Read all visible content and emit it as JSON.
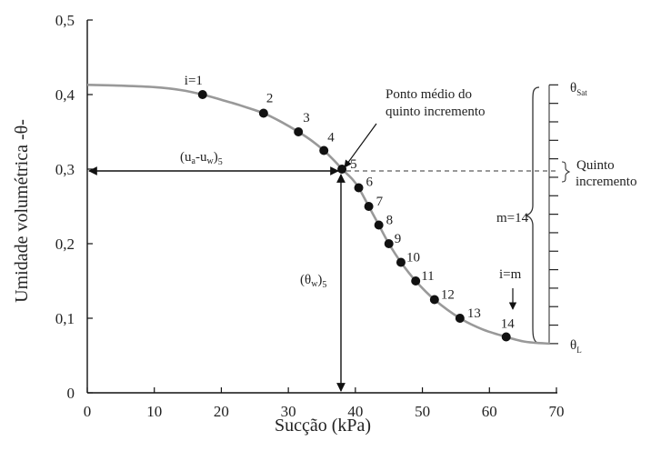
{
  "chart_data": {
    "type": "line",
    "xlabel": "Sucção (kPa)",
    "ylabel": "Umidade volumétrica -θ-",
    "xlim": [
      0,
      70
    ],
    "ylim": [
      0,
      0.5
    ],
    "x_ticks": [
      0,
      10,
      20,
      30,
      40,
      50,
      60,
      70
    ],
    "x_tick_labels": [
      "0",
      "10",
      "20",
      "30",
      "40",
      "50",
      "60",
      "70"
    ],
    "y_ticks": [
      0,
      0.1,
      0.2,
      0.3,
      0.4,
      0.5
    ],
    "y_tick_labels": [
      "0",
      "0,1",
      "0,2",
      "0,3",
      "0,4",
      "0,5"
    ],
    "grid": false,
    "curve": {
      "color": "#999999",
      "x": [
        0,
        5,
        10,
        14,
        17.2,
        20,
        23,
        26.3,
        29,
        31.5,
        33.5,
        35.3,
        37,
        38,
        39.5,
        40.5,
        42,
        43.5,
        45,
        46.8,
        49,
        51.8,
        55.6,
        59,
        62.5,
        65,
        67,
        69
      ],
      "y": [
        0.413,
        0.412,
        0.41,
        0.406,
        0.4,
        0.393,
        0.385,
        0.375,
        0.363,
        0.35,
        0.338,
        0.325,
        0.31,
        0.3,
        0.287,
        0.275,
        0.25,
        0.225,
        0.2,
        0.175,
        0.15,
        0.125,
        0.1,
        0.085,
        0.075,
        0.069,
        0.067,
        0.066
      ]
    },
    "points": [
      {
        "label": "i=1",
        "x": 17.2,
        "y": 0.4
      },
      {
        "label": "2",
        "x": 26.3,
        "y": 0.375
      },
      {
        "label": "3",
        "x": 31.5,
        "y": 0.35
      },
      {
        "label": "4",
        "x": 35.3,
        "y": 0.325
      },
      {
        "label": "5",
        "x": 38,
        "y": 0.3
      },
      {
        "label": "6",
        "x": 40.5,
        "y": 0.275
      },
      {
        "label": "7",
        "x": 42,
        "y": 0.25
      },
      {
        "label": "8",
        "x": 43.5,
        "y": 0.225
      },
      {
        "label": "9",
        "x": 45,
        "y": 0.2
      },
      {
        "label": "10",
        "x": 46.8,
        "y": 0.175
      },
      {
        "label": "11",
        "x": 49,
        "y": 0.15
      },
      {
        "label": "12",
        "x": 51.8,
        "y": 0.125
      },
      {
        "label": "13",
        "x": 55.6,
        "y": 0.1
      },
      {
        "label": "14",
        "x": 62.5,
        "y": 0.075
      }
    ],
    "increment_scale": {
      "x": 70,
      "y_top": 0.413,
      "y_bottom": 0.066,
      "divisions": 14
    },
    "annotations": {
      "ponto_medio_line1": "Ponto médio do",
      "ponto_medio_line2": "quinto incremento",
      "theta_sat": "θ",
      "theta_sat_sub": "Sat",
      "theta_l": "θ",
      "theta_l_sub": "L",
      "quinto_line1": "Quinto",
      "quinto_line2": "incremento",
      "m_label": "m=14",
      "i_m_label": "i=m",
      "suction_label_main": "(u",
      "suction_label_sub_a": "a",
      "suction_label_mid": "-u",
      "suction_label_sub_w": "w",
      "suction_label_end": ")",
      "suction_label_sub_5": "5",
      "theta_w_label_main": "(θ",
      "theta_w_label_sub_w": "w",
      "theta_w_label_end": ")",
      "theta_w_label_sub_5": "5"
    }
  }
}
